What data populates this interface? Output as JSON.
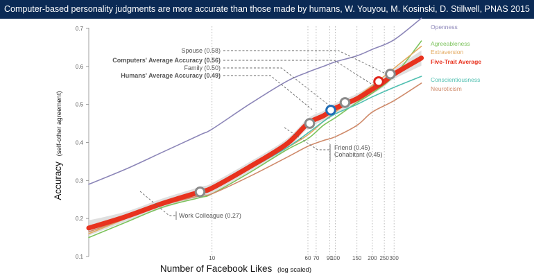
{
  "page": {
    "title": "Computer-based personality judgments are more accurate than those made by humans, W. Youyou, M. Kosinski, D. Stillwell, PNAS 2015"
  },
  "chart_data": {
    "type": "line",
    "xlabel": "Number of Facebook Likes",
    "xlabel_note": "(log scaled)",
    "ylabel": "Accuracy",
    "ylabel_note": "(self-other agreement)",
    "x_scale": "log",
    "xlim": [
      1,
      550
    ],
    "ylim": [
      0.1,
      0.72
    ],
    "x_ticks": [
      10,
      60,
      70,
      90,
      100,
      150,
      200,
      250,
      300
    ],
    "y_ticks": [
      0.1,
      0.2,
      0.3,
      0.4,
      0.5,
      0.6,
      0.7
    ],
    "y_tick_labels": [
      "0.1",
      "0.2",
      "0.3",
      "0.4",
      "0.5",
      "0.6",
      "0.7"
    ],
    "x_gridlines": [
      10,
      60,
      70,
      90,
      100,
      150,
      200,
      250,
      300
    ],
    "legend_placement": "right",
    "series": [
      {
        "name": "Openness",
        "color": "#8c86b8",
        "x": [
          1,
          2,
          4,
          8,
          10,
          20,
          40,
          60,
          80,
          100,
          150,
          200,
          300,
          500
        ],
        "y": [
          0.29,
          0.33,
          0.375,
          0.42,
          0.435,
          0.5,
          0.56,
          0.585,
          0.6,
          0.612,
          0.628,
          0.645,
          0.67,
          0.727
        ]
      },
      {
        "name": "Agreeableness",
        "color": "#7cc35c",
        "x": [
          1,
          2,
          4,
          8,
          10,
          20,
          40,
          60,
          80,
          100,
          150,
          200,
          300,
          500
        ],
        "y": [
          0.15,
          0.19,
          0.23,
          0.255,
          0.265,
          0.32,
          0.38,
          0.41,
          0.445,
          0.465,
          0.505,
          0.53,
          0.575,
          0.667
        ]
      },
      {
        "name": "Extraversion",
        "color": "#e3a95f",
        "x": [
          1,
          2,
          4,
          8,
          10,
          20,
          40,
          60,
          80,
          100,
          150,
          200,
          300,
          500
        ],
        "y": [
          0.16,
          0.2,
          0.24,
          0.27,
          0.28,
          0.335,
          0.385,
          0.42,
          0.455,
          0.48,
          0.52,
          0.55,
          0.595,
          0.653
        ]
      },
      {
        "name": "Five-Trait Average",
        "color": "#e8321e",
        "x": [
          1,
          2,
          4,
          8,
          10,
          20,
          40,
          60,
          80,
          100,
          150,
          200,
          250,
          300,
          500
        ],
        "y": [
          0.175,
          0.205,
          0.24,
          0.27,
          0.28,
          0.335,
          0.395,
          0.45,
          0.47,
          0.49,
          0.515,
          0.54,
          0.56,
          0.58,
          0.622
        ]
      },
      {
        "name": "Conscientiousness",
        "color": "#4fbfb0",
        "x": [
          1,
          2,
          4,
          8,
          10,
          20,
          40,
          60,
          80,
          100,
          150,
          200,
          300,
          500
        ],
        "y": [
          0.17,
          0.205,
          0.235,
          0.265,
          0.275,
          0.33,
          0.385,
          0.425,
          0.455,
          0.475,
          0.5,
          0.52,
          0.545,
          0.574
        ]
      },
      {
        "name": "Neuroticism",
        "color": "#cf8a6a",
        "x": [
          1,
          2,
          4,
          8,
          10,
          20,
          40,
          60,
          80,
          100,
          150,
          200,
          300,
          500
        ],
        "y": [
          0.165,
          0.2,
          0.235,
          0.26,
          0.265,
          0.31,
          0.36,
          0.39,
          0.405,
          0.415,
          0.445,
          0.48,
          0.51,
          0.556
        ]
      }
    ],
    "markers": [
      {
        "x": 8,
        "y": 0.27,
        "style": "gray",
        "label": "Work Colleague (0.27)"
      },
      {
        "x": 62,
        "y": 0.45,
        "style": "gray",
        "label": "Friend (0.45)"
      },
      {
        "x": 62,
        "y": 0.45,
        "style": "none",
        "label": "Cohabitant (0.45)"
      },
      {
        "x": 92,
        "y": 0.485,
        "style": "blue",
        "label": "Humans' Average Accuracy (0.49)"
      },
      {
        "x": 120,
        "y": 0.505,
        "style": "gray",
        "label": "Family (0.50)"
      },
      {
        "x": 225,
        "y": 0.56,
        "style": "red",
        "label": "Computers' Average Accuracy (0.56)"
      },
      {
        "x": 280,
        "y": 0.58,
        "style": "gray",
        "label": "Spouse (0.58)"
      }
    ],
    "annotation_styles": {
      "Work Colleague (0.27)": {
        "color": "#555555",
        "bold": false
      },
      "Friend (0.45)": {
        "color": "#555555",
        "bold": false
      },
      "Cohabitant (0.45)": {
        "color": "#555555",
        "bold": false
      },
      "Humans' Average Accuracy (0.49)": {
        "color": "#2a6fa6",
        "bold": true
      },
      "Family (0.50)": {
        "color": "#555555",
        "bold": false
      },
      "Computers' Average Accuracy (0.56)": {
        "color": "#e0261c",
        "bold": true
      },
      "Spouse (0.58)": {
        "color": "#555555",
        "bold": false
      }
    },
    "legend_styles": {
      "Openness": {
        "bold": false
      },
      "Agreeableness": {
        "bold": false
      },
      "Extraversion": {
        "bold": false
      },
      "Five-Trait Average": {
        "bold": true
      },
      "Conscientiousness": {
        "bold": false
      },
      "Neuroticism": {
        "bold": false
      }
    }
  }
}
